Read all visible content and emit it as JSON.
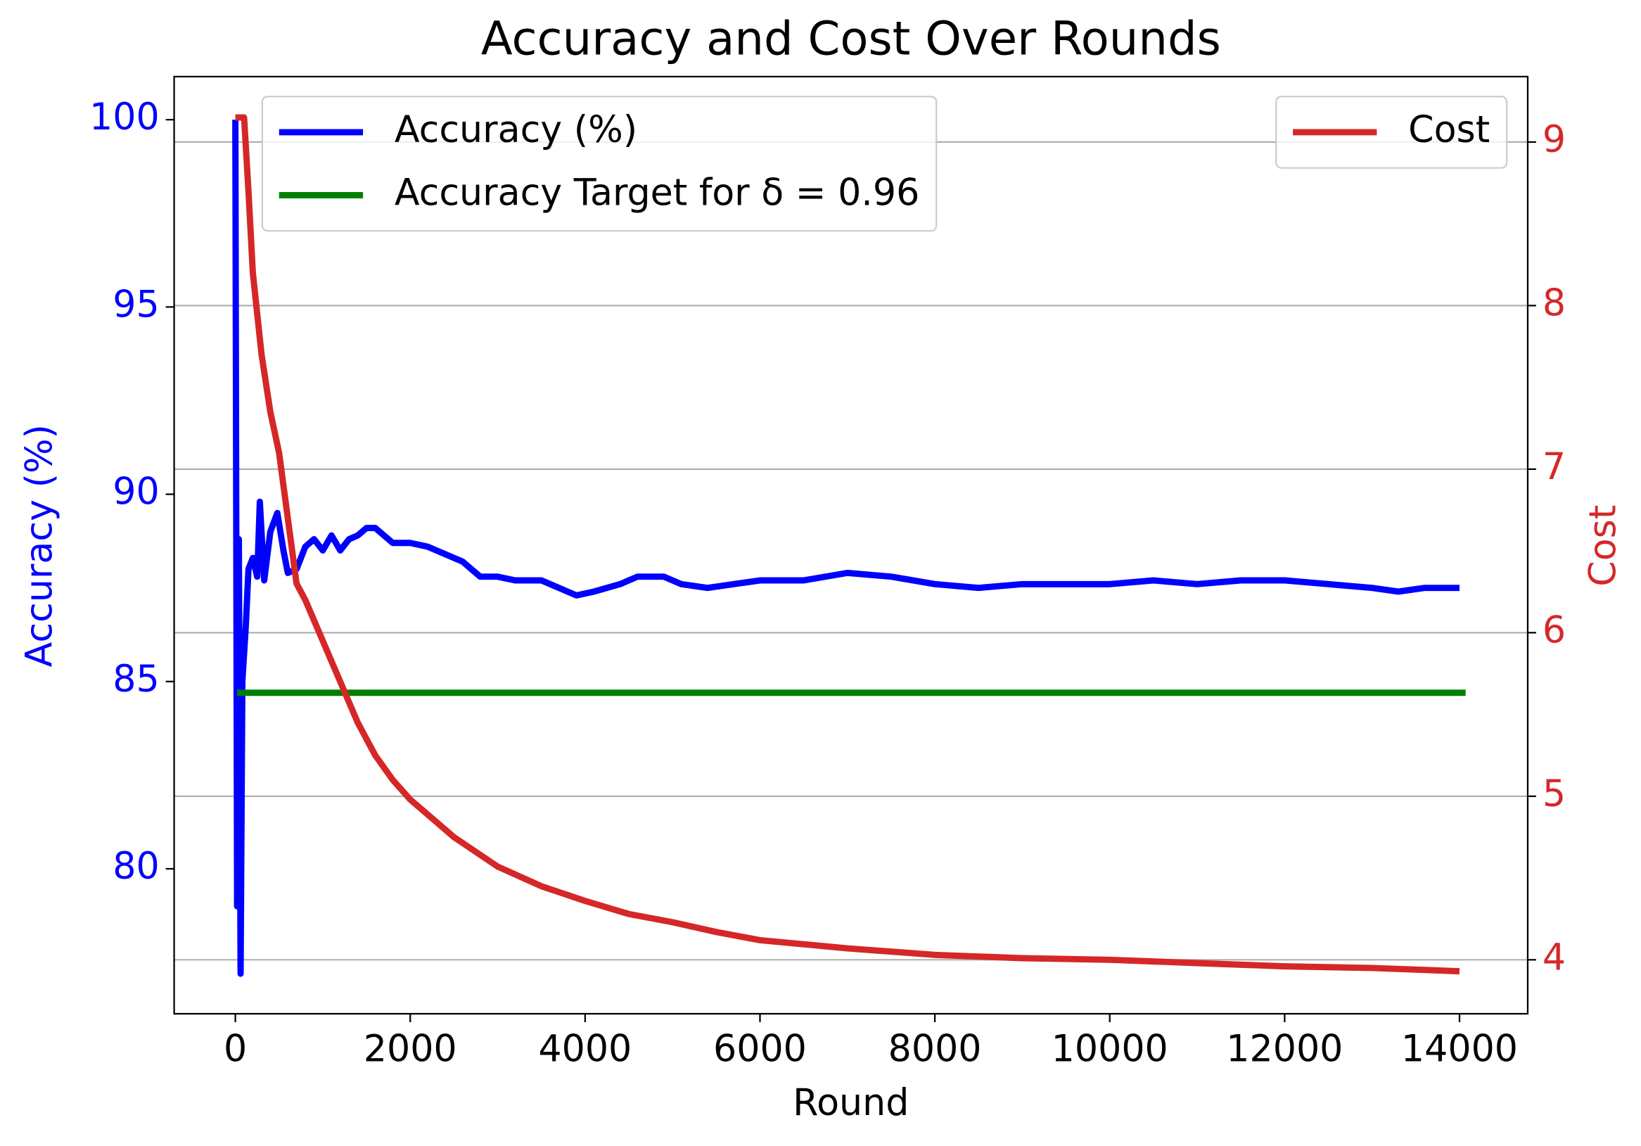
{
  "chart_data": {
    "type": "line",
    "title": "Accuracy and Cost Over Rounds",
    "x_label": "Round",
    "y_label": "Accuracy (%)",
    "y2_label": "Cost",
    "xlim": [
      -700,
      14780
    ],
    "xticks": [
      0,
      2000,
      4000,
      6000,
      8000,
      10000,
      12000,
      14000
    ],
    "ylim": [
      76.13,
      101.15
    ],
    "yticks": [
      80,
      85,
      90,
      95,
      100
    ],
    "y2lim": [
      3.67,
      9.4
    ],
    "y2ticks": [
      4,
      5,
      6,
      7,
      8,
      9
    ],
    "grid": "y2",
    "legend_loc": "upper left",
    "legend2_loc": "upper right",
    "series": [
      {
        "name": "Accuracy (%)",
        "color": "#0000ff",
        "x": [
          0,
          20,
          40,
          60,
          80,
          120,
          150,
          200,
          250,
          280,
          330,
          400,
          480,
          550,
          600,
          700,
          800,
          900,
          1000,
          1100,
          1200,
          1300,
          1400,
          1500,
          1600,
          1700,
          1800,
          2000,
          2200,
          2400,
          2600,
          2700,
          2800,
          3000,
          3200,
          3500,
          3700,
          3900,
          4100,
          4400,
          4600,
          4900,
          5100,
          5400,
          5700,
          6000,
          6500,
          7000,
          7500,
          8000,
          8500,
          9000,
          9500,
          10000,
          10500,
          11000,
          11500,
          12000,
          12500,
          13000,
          13300,
          13600,
          14000
        ],
        "values": [
          100,
          79,
          88.8,
          77.2,
          85,
          86.5,
          88,
          88.3,
          87.8,
          89.8,
          87.7,
          89,
          89.5,
          88.5,
          87.9,
          88,
          88.6,
          88.8,
          88.5,
          88.9,
          88.5,
          88.8,
          88.9,
          89.1,
          89.1,
          88.9,
          88.7,
          88.7,
          88.6,
          88.4,
          88.2,
          88,
          87.8,
          87.8,
          87.7,
          87.7,
          87.5,
          87.3,
          87.4,
          87.6,
          87.8,
          87.8,
          87.6,
          87.5,
          87.6,
          87.7,
          87.7,
          87.9,
          87.8,
          87.6,
          87.5,
          87.6,
          87.6,
          87.6,
          87.7,
          87.6,
          87.7,
          87.7,
          87.6,
          87.5,
          87.4,
          87.5,
          87.5
        ]
      },
      {
        "name": "Accuracy Target for δ = 0.96",
        "color": "#008000",
        "x": [
          20,
          14070
        ],
        "values": [
          84.7,
          84.7
        ]
      },
      {
        "name": "Cost",
        "color": "#d62728",
        "axis": "y2",
        "x": [
          0,
          100,
          150,
          200,
          300,
          400,
          500,
          600,
          700,
          800,
          1000,
          1200,
          1400,
          1600,
          1800,
          2000,
          2500,
          3000,
          3500,
          4000,
          4500,
          5000,
          5500,
          6000,
          7000,
          8000,
          9000,
          10000,
          11000,
          12000,
          13000,
          14000
        ],
        "values": [
          9.15,
          9.15,
          8.7,
          8.2,
          7.7,
          7.35,
          7.1,
          6.7,
          6.3,
          6.2,
          5.95,
          5.7,
          5.45,
          5.25,
          5.1,
          4.98,
          4.75,
          4.57,
          4.45,
          4.36,
          4.28,
          4.23,
          4.17,
          4.12,
          4.07,
          4.03,
          4.01,
          4,
          3.98,
          3.96,
          3.95,
          3.93
        ]
      }
    ]
  }
}
